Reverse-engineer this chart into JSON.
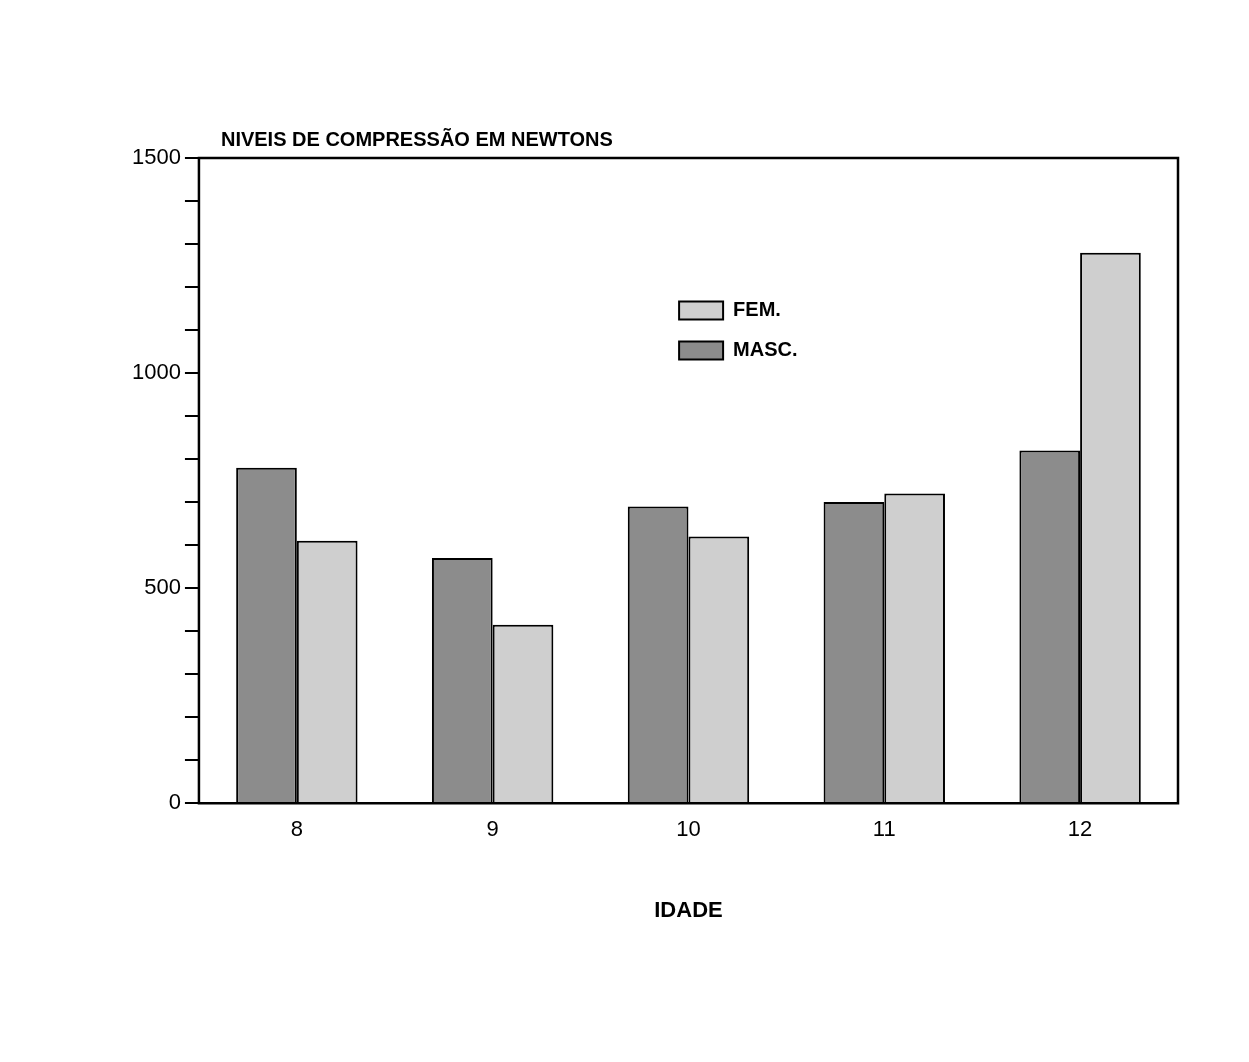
{
  "chart_data": {
    "type": "bar",
    "ylabel": "NIVEIS DE COMPRESSÃO EM NEWTONS",
    "xlabel": "IDADE",
    "categories": [
      "8",
      "9",
      "10",
      "11",
      "12"
    ],
    "series": [
      {
        "name": "MASC.",
        "color": "#8c8c8c",
        "values": [
          780,
          570,
          690,
          700,
          820
        ]
      },
      {
        "name": "FEM.",
        "color": "#cfcfcf",
        "values": [
          610,
          415,
          620,
          720,
          1280
        ]
      }
    ],
    "ylim": [
      0,
      1500
    ],
    "yticks": [
      0,
      {
        "value": 100,
        "label": null
      },
      {
        "value": 200,
        "label": null
      },
      {
        "value": 300,
        "label": null
      },
      {
        "value": 400,
        "label": null
      },
      500,
      {
        "value": 600,
        "label": null
      },
      {
        "value": 700,
        "label": null
      },
      {
        "value": 800,
        "label": null
      },
      {
        "value": 900,
        "label": null
      },
      1000,
      {
        "value": 1100,
        "label": null
      },
      {
        "value": 1200,
        "label": null
      },
      {
        "value": 1300,
        "label": null
      },
      {
        "value": 1400,
        "label": null
      },
      1500
    ],
    "grid": false,
    "legend": "top"
  }
}
